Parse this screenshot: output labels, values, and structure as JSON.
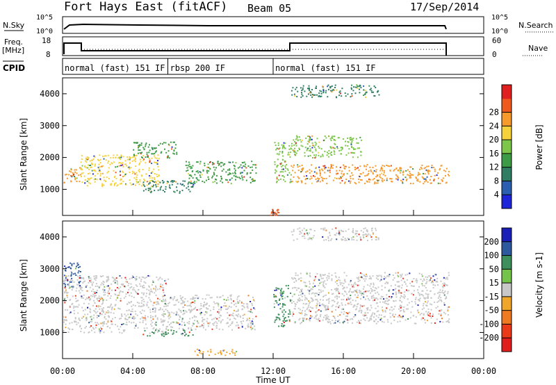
{
  "header": {
    "station": "Fort Hays East (fitACF)",
    "beam": "Beam 05",
    "date": "17/Sep/2014"
  },
  "noise_panel": {
    "left_label": "N.Sky",
    "right_label": "N.Search",
    "left_ticks": [
      "10^5",
      "10^0"
    ],
    "right_ticks": [
      "10^5",
      "10^0"
    ]
  },
  "freq_panel": {
    "left_label_1": "Freq.",
    "left_label_2": "[MHz]",
    "right_label": "Nave",
    "left_ticks": [
      "18",
      "8"
    ],
    "right_ticks": [
      "60",
      "0"
    ]
  },
  "cpid_panel": {
    "label": "CPID",
    "segments": [
      {
        "label": "normal (fast) 151 IF",
        "start_hour": 0.0,
        "end_hour": 6.0
      },
      {
        "label": "rbsp 200 IF",
        "start_hour": 6.0,
        "end_hour": 12.0
      },
      {
        "label": "normal (fast) 151 IF",
        "start_hour": 12.0,
        "end_hour": 22.0
      }
    ]
  },
  "x_axis": {
    "label": "Time UT",
    "ticks": [
      "00:00",
      "04:00",
      "08:00",
      "12:00",
      "16:00",
      "20:00",
      "00:00"
    ]
  },
  "chart_data": [
    {
      "type": "heatmap",
      "panel": "power",
      "ylabel": "Slant Range [km]",
      "yticks": [
        1000,
        2000,
        3000,
        4000
      ],
      "ylim": [
        180,
        4500
      ],
      "xlim_hours": [
        0,
        24
      ],
      "colorbar": {
        "label": "Power [dB]",
        "ticks": [
          4,
          8,
          12,
          16,
          20,
          24,
          28
        ],
        "colors": [
          "#1e25d8",
          "#2a5fb0",
          "#2f7d63",
          "#3c9b44",
          "#7cc64a",
          "#f5d23c",
          "#f59a2b",
          "#ee5a1c",
          "#e0201e"
        ]
      },
      "echo_bands": [
        {
          "t0": 0.0,
          "t1": 1.0,
          "r0": 1200,
          "r1": 1700,
          "level": 24
        },
        {
          "t0": 1.0,
          "t1": 5.5,
          "r0": 1100,
          "r1": 2100,
          "level": 20
        },
        {
          "t0": 4.0,
          "t1": 6.5,
          "r0": 2000,
          "r1": 2500,
          "level": 12
        },
        {
          "t0": 4.5,
          "t1": 7.5,
          "r0": 900,
          "r1": 1300,
          "level": 8
        },
        {
          "t0": 7.0,
          "t1": 11.0,
          "r0": 1200,
          "r1": 1900,
          "level": 12
        },
        {
          "t0": 11.8,
          "t1": 12.3,
          "r0": 200,
          "r1": 400,
          "level": 28
        },
        {
          "t0": 12.0,
          "t1": 13.0,
          "r0": 1200,
          "r1": 2500,
          "level": 16
        },
        {
          "t0": 13.0,
          "t1": 22.0,
          "r0": 1200,
          "r1": 1800,
          "level": 24
        },
        {
          "t0": 13.0,
          "t1": 17.0,
          "r0": 2000,
          "r1": 2700,
          "level": 16
        },
        {
          "t0": 13.0,
          "t1": 18.0,
          "r0": 3900,
          "r1": 4300,
          "level": 8
        }
      ]
    },
    {
      "type": "heatmap",
      "panel": "velocity",
      "ylabel": "Slant Range [km]",
      "yticks": [
        1000,
        2000,
        3000,
        4000
      ],
      "ylim": [
        180,
        4500
      ],
      "xlim_hours": [
        0,
        24
      ],
      "colorbar": {
        "label": "Velocity [m s-1]",
        "ticks": [
          200,
          100,
          50,
          15,
          -15,
          -50,
          -100,
          -200
        ],
        "colors": [
          "#1a1fb8",
          "#2d5a9e",
          "#3d8f5c",
          "#74c44c",
          "#c8c8c8",
          "#f0a62a",
          "#ee7a22",
          "#ea3a1a",
          "#e01e1e"
        ]
      },
      "echo_bands": [
        {
          "t0": 0.0,
          "t1": 1.0,
          "r0": 2400,
          "r1": 3200,
          "level": 100
        },
        {
          "t0": 0.0,
          "t1": 6.0,
          "r0": 1000,
          "r1": 2800,
          "level": 0
        },
        {
          "t0": 6.0,
          "t1": 11.0,
          "r0": 1100,
          "r1": 2200,
          "level": 0
        },
        {
          "t0": 4.5,
          "t1": 7.5,
          "r0": 900,
          "r1": 1100,
          "level": 50
        },
        {
          "t0": 7.5,
          "t1": 10.0,
          "r0": 300,
          "r1": 500,
          "level": -50
        },
        {
          "t0": 12.0,
          "t1": 13.0,
          "r0": 1200,
          "r1": 2500,
          "level": 50
        },
        {
          "t0": 13.0,
          "t1": 22.0,
          "r0": 1300,
          "r1": 2900,
          "level": 0
        },
        {
          "t0": 13.0,
          "t1": 18.0,
          "r0": 3900,
          "r1": 4300,
          "level": 0
        }
      ]
    }
  ]
}
